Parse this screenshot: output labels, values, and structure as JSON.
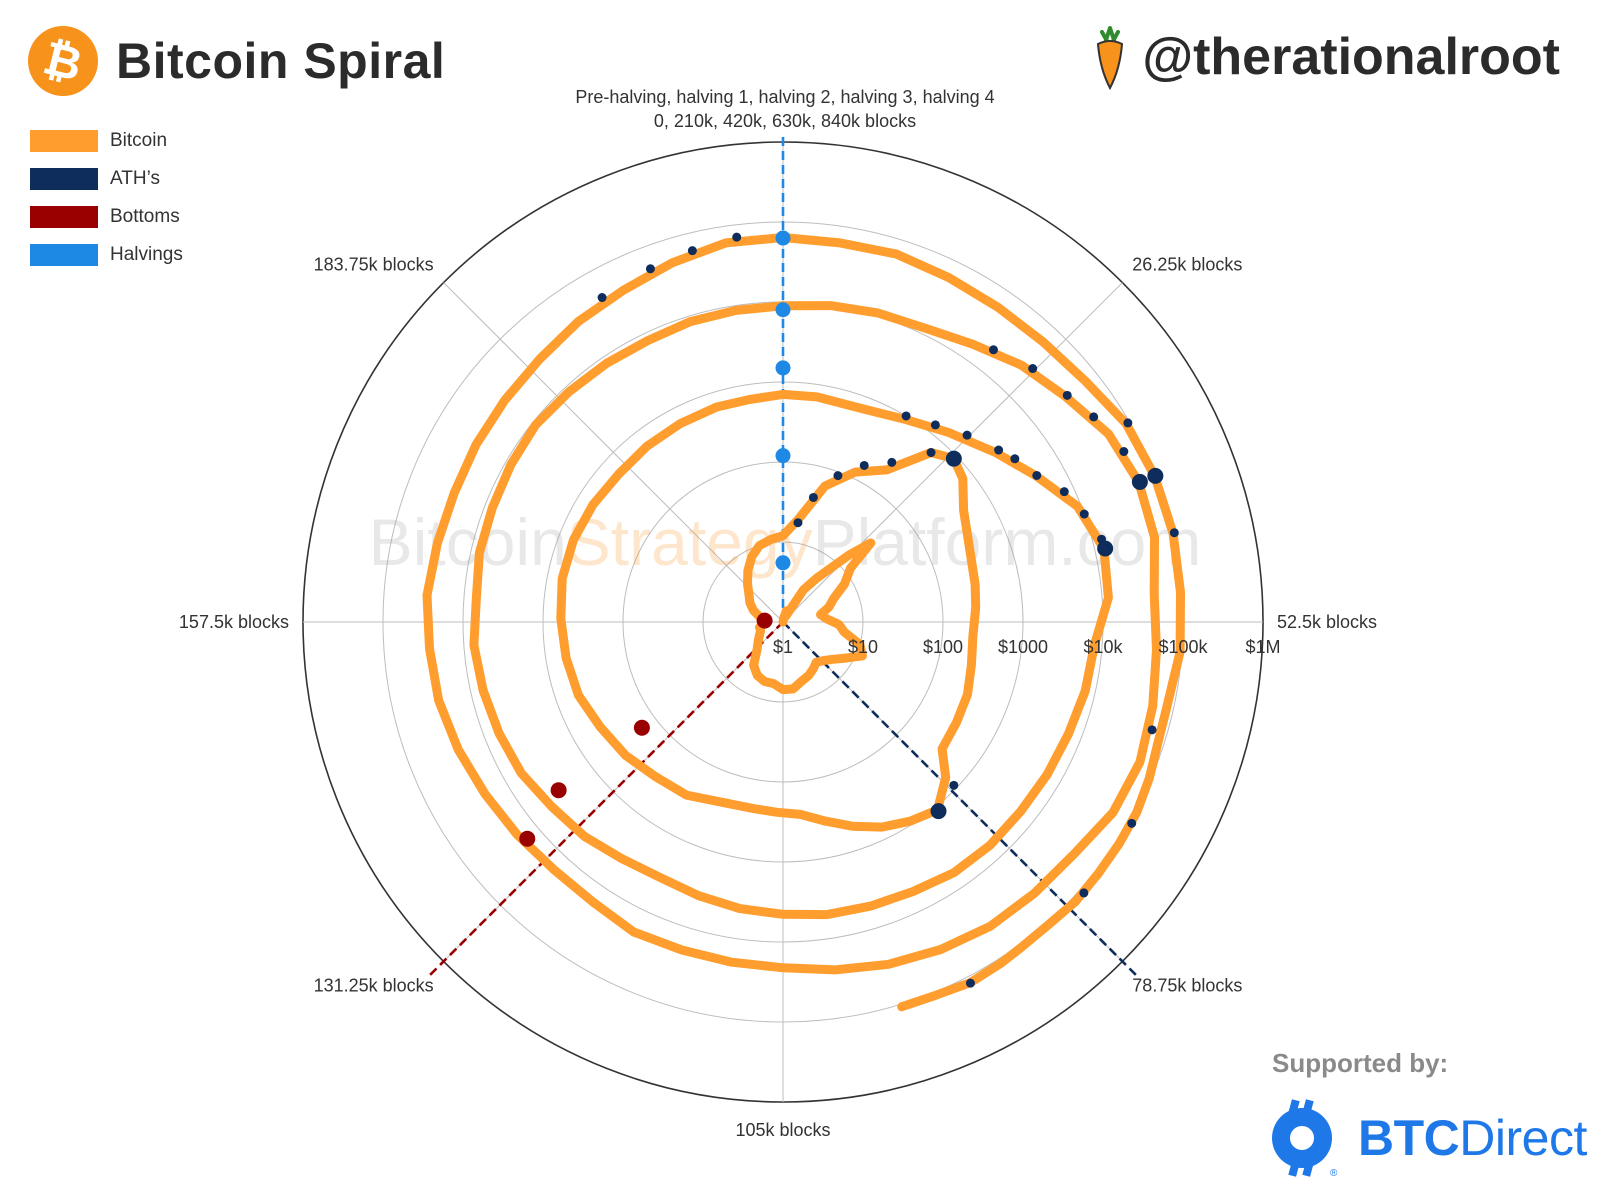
{
  "header": {
    "title": "Bitcoin Spiral",
    "logo_glyph": "₿",
    "handle": "@therationalroot"
  },
  "legend": {
    "items": [
      {
        "label": "Bitcoin",
        "color": "#ff9d2e"
      },
      {
        "label": "ATH’s",
        "color": "#0f2d5c"
      },
      {
        "label": "Bottoms",
        "color": "#990000"
      },
      {
        "label": "Halvings",
        "color": "#1e88e5"
      }
    ]
  },
  "watermark": {
    "part1": "Bitcoin",
    "part2": "Strategy",
    "part3": "Platform.com"
  },
  "sponsor": {
    "label": "Supported by:",
    "brand_bold": "BTC",
    "brand_regular": "Direct",
    "registered": "®"
  },
  "chart_data": {
    "type": "polar-spiral",
    "title": "Bitcoin Spiral",
    "top_annotation": [
      "Pre-halving, halving 1, halving 2, halving 3, halving 4",
      "0, 210k, 420k, 630k, 840k blocks"
    ],
    "angular_axis": {
      "period_blocks": 210000,
      "labels": [
        {
          "label": "52.5k blocks",
          "blocks": 52500
        },
        {
          "label": "26.25k blocks",
          "blocks": 26250
        },
        {
          "label": "78.75k blocks",
          "blocks": 78750
        },
        {
          "label": "105k blocks",
          "blocks": 105000
        },
        {
          "label": "131.25k blocks",
          "blocks": 131250
        },
        {
          "label": "157.5k blocks",
          "blocks": 157500
        },
        {
          "label": "183.75k blocks",
          "blocks": 183750
        }
      ]
    },
    "radial_axis": {
      "scale": "log",
      "range_usd": [
        1,
        1000000
      ],
      "tick_values": [
        1,
        10,
        100,
        1000,
        10000,
        100000,
        1000000
      ],
      "tick_labels": [
        "$1",
        "$10",
        "$100",
        "$1000",
        "$10k",
        "$100k",
        "$1M"
      ]
    },
    "series": [
      {
        "name": "Bitcoin",
        "color": "#ff9d2e",
        "points_blocks_usd": [
          [
            0,
            1
          ],
          [
            5000,
            1.1
          ],
          [
            10000,
            1.4
          ],
          [
            15000,
            1.2
          ],
          [
            19000,
            3
          ],
          [
            22000,
            5
          ],
          [
            26000,
            15
          ],
          [
            28000,
            30
          ],
          [
            30000,
            12
          ],
          [
            34000,
            8
          ],
          [
            38000,
            5
          ],
          [
            42000,
            4
          ],
          [
            46000,
            3
          ],
          [
            50000,
            3.5
          ],
          [
            54000,
            5
          ],
          [
            58000,
            6
          ],
          [
            62000,
            10
          ],
          [
            66000,
            12
          ],
          [
            70000,
            8
          ],
          [
            74000,
            6
          ],
          [
            78000,
            5
          ],
          [
            82000,
            4.5
          ],
          [
            86000,
            5
          ],
          [
            90000,
            5.5
          ],
          [
            95000,
            6
          ],
          [
            100000,
            7
          ],
          [
            105000,
            7
          ],
          [
            110000,
            6
          ],
          [
            115000,
            6
          ],
          [
            120000,
            5.5
          ],
          [
            125000,
            4.5
          ],
          [
            130000,
            3
          ],
          [
            135000,
            2.5
          ],
          [
            140000,
            2.2
          ],
          [
            145000,
            2
          ],
          [
            150000,
            2
          ],
          [
            155000,
            1.8
          ],
          [
            160000,
            1.7
          ],
          [
            165000,
            2
          ],
          [
            170000,
            2.5
          ],
          [
            175000,
            3
          ],
          [
            180000,
            3.5
          ],
          [
            185000,
            4.5
          ],
          [
            190000,
            6
          ],
          [
            195000,
            8
          ],
          [
            200000,
            10
          ],
          [
            205000,
            11
          ],
          [
            210000,
            12
          ],
          [
            215000,
            20
          ],
          [
            220000,
            60
          ],
          [
            225000,
            120
          ],
          [
            230000,
            200
          ],
          [
            234000,
            650
          ],
          [
            237000,
            900
          ],
          [
            240000,
            750
          ],
          [
            244000,
            450
          ],
          [
            248000,
            350
          ],
          [
            252000,
            300
          ],
          [
            256000,
            280
          ],
          [
            260000,
            260
          ],
          [
            265000,
            240
          ],
          [
            270000,
            260
          ],
          [
            275000,
            300
          ],
          [
            280000,
            320
          ],
          [
            285000,
            350
          ],
          [
            288000,
            650
          ],
          [
            292000,
            1100
          ],
          [
            296000,
            900
          ],
          [
            300000,
            700
          ],
          [
            304000,
            500
          ],
          [
            308000,
            350
          ],
          [
            312000,
            260
          ],
          [
            316000,
            240
          ],
          [
            320000,
            230
          ],
          [
            326000,
            240
          ],
          [
            332000,
            300
          ],
          [
            338000,
            320
          ],
          [
            344000,
            380
          ],
          [
            350000,
            430
          ],
          [
            356000,
            520
          ],
          [
            362000,
            560
          ],
          [
            368000,
            600
          ],
          [
            374000,
            650
          ],
          [
            380000,
            650
          ],
          [
            386000,
            620
          ],
          [
            392000,
            580
          ],
          [
            398000,
            600
          ],
          [
            404000,
            620
          ],
          [
            410000,
            650
          ],
          [
            415000,
            650
          ],
          [
            420000,
            700
          ],
          [
            425000,
            700
          ],
          [
            432000,
            700
          ],
          [
            438000,
            900
          ],
          [
            444000,
            1400
          ],
          [
            450000,
            2500
          ],
          [
            455000,
            4500
          ],
          [
            460000,
            9000
          ],
          [
            465000,
            13000
          ],
          [
            470000,
            12000
          ],
          [
            475000,
            8000
          ],
          [
            480000,
            7500
          ],
          [
            485000,
            6800
          ],
          [
            490000,
            6500
          ],
          [
            495000,
            6300
          ],
          [
            500000,
            6400
          ],
          [
            505000,
            6200
          ],
          [
            510000,
            5500
          ],
          [
            515000,
            5200
          ],
          [
            520000,
            5000
          ],
          [
            525000,
            4500
          ],
          [
            530000,
            4200
          ],
          [
            535000,
            3800
          ],
          [
            540000,
            3500
          ],
          [
            545000,
            3800
          ],
          [
            550000,
            4500
          ],
          [
            555000,
            5000
          ],
          [
            560000,
            6000
          ],
          [
            565000,
            6500
          ],
          [
            570000,
            7000
          ],
          [
            575000,
            7500
          ],
          [
            580000,
            7000
          ],
          [
            585000,
            7800
          ],
          [
            590000,
            8000
          ],
          [
            595000,
            8500
          ],
          [
            600000,
            9000
          ],
          [
            605000,
            8500
          ],
          [
            610000,
            8200
          ],
          [
            615000,
            8000
          ],
          [
            620000,
            8500
          ],
          [
            625000,
            8700
          ],
          [
            630000,
            9000
          ],
          [
            635000,
            10000
          ],
          [
            640000,
            11000
          ],
          [
            645000,
            12000
          ],
          [
            650000,
            16000
          ],
          [
            655000,
            24000
          ],
          [
            660000,
            33000
          ],
          [
            665000,
            50000
          ],
          [
            670000,
            60000
          ],
          [
            675000,
            58000
          ],
          [
            680000,
            45000
          ],
          [
            685000,
            48000
          ],
          [
            690000,
            55000
          ],
          [
            695000,
            62000
          ],
          [
            700000,
            58000
          ],
          [
            705000,
            45000
          ],
          [
            710000,
            42000
          ],
          [
            715000,
            40000
          ],
          [
            720000,
            35000
          ],
          [
            725000,
            30000
          ],
          [
            730000,
            25000
          ],
          [
            735000,
            21000
          ],
          [
            740000,
            20000
          ],
          [
            745000,
            19500
          ],
          [
            750000,
            20000
          ],
          [
            755000,
            17000
          ],
          [
            760000,
            16500
          ],
          [
            765000,
            18000
          ],
          [
            770000,
            20000
          ],
          [
            775000,
            23000
          ],
          [
            780000,
            26000
          ],
          [
            785000,
            27000
          ],
          [
            790000,
            29000
          ],
          [
            795000,
            27000
          ],
          [
            800000,
            26000
          ],
          [
            805000,
            27000
          ],
          [
            810000,
            28000
          ],
          [
            815000,
            30000
          ],
          [
            820000,
            35000
          ],
          [
            825000,
            40000
          ],
          [
            830000,
            50000
          ],
          [
            835000,
            62000
          ],
          [
            840000,
            64000
          ],
          [
            845000,
            62000
          ],
          [
            850000,
            65000
          ],
          [
            855000,
            60000
          ],
          [
            860000,
            58000
          ],
          [
            865000,
            60000
          ],
          [
            870000,
            68000
          ],
          [
            875000,
            90000
          ],
          [
            880000,
            98000
          ],
          [
            885000,
            100000
          ],
          [
            890000,
            96000
          ],
          [
            895000,
            95000
          ],
          [
            900000,
            82000
          ],
          [
            903000,
            84000
          ],
          [
            906000,
            95000
          ],
          [
            909000,
            105000
          ],
          [
            912000,
            108000
          ],
          [
            915000,
            110000
          ],
          [
            918000,
            114000
          ],
          [
            921000,
            108000
          ],
          [
            924000,
            110000
          ],
          [
            926000,
            115000
          ],
          [
            929000,
            120000
          ],
          [
            932000,
            110000
          ],
          [
            935000,
            108000
          ]
        ]
      },
      {
        "name": "ATH’s",
        "color": "#0f2d5c",
        "points_blocks_usd": [
          [
            215000,
            18
          ],
          [
            218000,
            40
          ],
          [
            222000,
            90
          ],
          [
            226000,
            160
          ],
          [
            230000,
            260
          ],
          [
            234000,
            650
          ],
          [
            237000,
            900
          ],
          [
            288000,
            900
          ],
          [
            292000,
            1150
          ],
          [
            438000,
            1000
          ],
          [
            442000,
            1300
          ],
          [
            446000,
            1900
          ],
          [
            450000,
            2800
          ],
          [
            452000,
            3500
          ],
          [
            455000,
            4600
          ],
          [
            458000,
            7500
          ],
          [
            461000,
            10000
          ],
          [
            464000,
            13000
          ],
          [
            465000,
            13500
          ],
          [
            652000,
            20000
          ],
          [
            656000,
            28000
          ],
          [
            660000,
            35000
          ],
          [
            663000,
            45000
          ],
          [
            667000,
            58000
          ],
          [
            670000,
            62000
          ],
          [
            692000,
            64000
          ],
          [
            823000,
            44000
          ],
          [
            828000,
            52000
          ],
          [
            832000,
            60000
          ],
          [
            836000,
            70000
          ],
          [
            875000,
            95000
          ],
          [
            880000,
            100000
          ],
          [
            885000,
            104000
          ],
          [
            910000,
            108000
          ],
          [
            917000,
            115000
          ],
          [
            929000,
            122000
          ]
        ]
      },
      {
        "name": "ATH’s (highlighted)",
        "color": "#0f2d5c",
        "points_blocks_usd": [
          [
            237000,
            900
          ],
          [
            292000,
            1150
          ],
          [
            465000,
            13500
          ],
          [
            670000,
            62000
          ],
          [
            880000,
            100000
          ]
        ]
      },
      {
        "name": "Bottoms",
        "color": "#990000",
        "points_blocks_usd": [
          [
            160000,
            1.7
          ],
          [
            346000,
            160
          ],
          [
            556000,
            3200
          ],
          [
            764000,
            15500
          ]
        ]
      }
    ],
    "reference_lines": [
      {
        "name": "Halvings",
        "color": "#1e88e5",
        "blocks": 0,
        "dots_usd": [
          5.5,
          120,
          1500,
          8000,
          63000
        ]
      },
      {
        "name": "ATH cycle line",
        "color": "#0f2d5c",
        "blocks": 78750
      },
      {
        "name": "Bottom cycle line",
        "color": "#990000",
        "blocks": 131250
      }
    ],
    "grid": true
  }
}
